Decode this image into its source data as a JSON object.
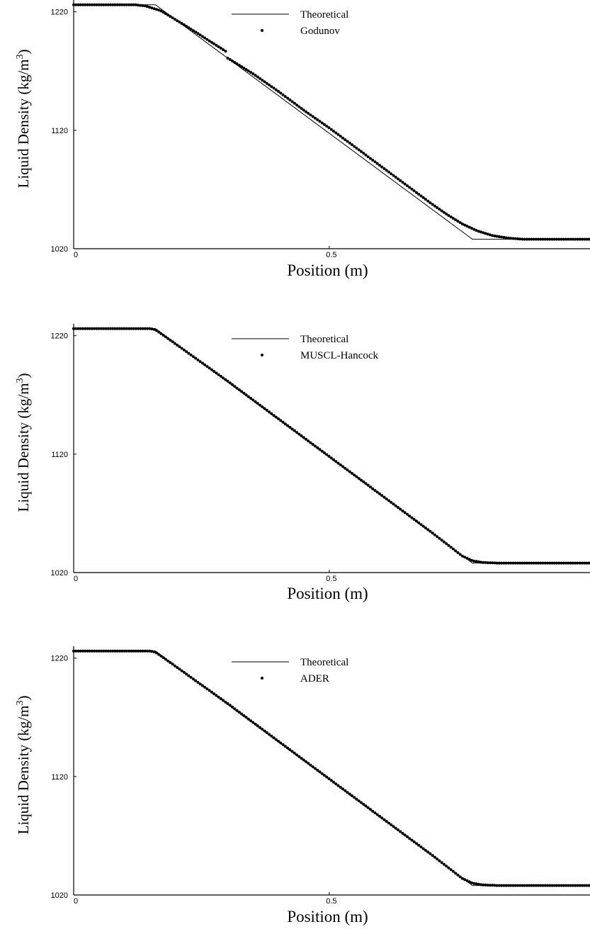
{
  "chart_data": [
    {
      "type": "line",
      "xlabel": "Position (m)",
      "ylabel_main": "Liquid Density (kg/m",
      "ylabel_sup": "3",
      "ylabel_close": ")",
      "xlim": [
        0,
        1.01
      ],
      "ylim": [
        1020,
        1230
      ],
      "xticks": [
        {
          "v": 0,
          "label": "0"
        },
        {
          "v": 0.5,
          "label": "0.5"
        }
      ],
      "yticks": [
        {
          "v": 1020,
          "label": "1020"
        },
        {
          "v": 1120,
          "label": "1120"
        },
        {
          "v": 1220,
          "label": "1220"
        }
      ],
      "series": [
        {
          "name": "Theoretical",
          "style": "line",
          "x": [
            0,
            0.16,
            0.78,
            1.01
          ],
          "y": [
            1226,
            1226,
            1028,
            1028
          ]
        },
        {
          "name": "Godunov",
          "style": "dots",
          "dx": 0.0045,
          "x": [
            0,
            0.12,
            0.14,
            0.17,
            0.22,
            0.3,
            0.301,
            0.35,
            0.4,
            0.45,
            0.5,
            0.55,
            0.6,
            0.65,
            0.7,
            0.73,
            0.76,
            0.79,
            0.82,
            0.85,
            0.88,
            1.01
          ],
          "y": [
            1226,
            1226,
            1225,
            1221,
            1208,
            1186,
            1181,
            1168,
            1153,
            1137,
            1122,
            1106,
            1090,
            1074,
            1058,
            1049,
            1041,
            1035,
            1031,
            1029,
            1028,
            1028
          ]
        }
      ]
    },
    {
      "type": "line",
      "xlabel": "Position (m)",
      "ylabel_main": "Liquid Density (kg/m",
      "ylabel_sup": "3",
      "ylabel_close": ")",
      "xlim": [
        0,
        1.01
      ],
      "ylim": [
        1020,
        1230
      ],
      "xticks": [
        {
          "v": 0,
          "label": "0"
        },
        {
          "v": 0.5,
          "label": "0.5"
        }
      ],
      "yticks": [
        {
          "v": 1020,
          "label": "1020"
        },
        {
          "v": 1120,
          "label": "1120"
        },
        {
          "v": 1220,
          "label": "1220"
        }
      ],
      "series": [
        {
          "name": "Theoretical",
          "style": "line",
          "x": [
            0,
            0.16,
            0.78,
            1.01
          ],
          "y": [
            1226,
            1226,
            1028,
            1028
          ]
        },
        {
          "name": "MUSCL-Hancock",
          "style": "dots",
          "dx": 0.0045,
          "x": [
            0,
            0.15,
            0.16,
            0.18,
            0.3,
            0.4,
            0.5,
            0.6,
            0.7,
            0.76,
            0.78,
            0.8,
            0.83,
            1.01
          ],
          "y": [
            1226,
            1226,
            1225,
            1219,
            1182,
            1150,
            1118,
            1086,
            1054,
            1034,
            1030,
            1028.5,
            1028,
            1028
          ]
        }
      ]
    },
    {
      "type": "line",
      "xlabel": "Position (m)",
      "ylabel_main": "Liquid Density (kg/m",
      "ylabel_sup": "3",
      "ylabel_close": ")",
      "xlim": [
        0,
        1.01
      ],
      "ylim": [
        1020,
        1230
      ],
      "xticks": [
        {
          "v": 0,
          "label": "0"
        },
        {
          "v": 0.5,
          "label": "0.5"
        }
      ],
      "yticks": [
        {
          "v": 1020,
          "label": "1020"
        },
        {
          "v": 1120,
          "label": "1120"
        },
        {
          "v": 1220,
          "label": "1220"
        }
      ],
      "series": [
        {
          "name": "Theoretical",
          "style": "line",
          "x": [
            0,
            0.16,
            0.78,
            1.01
          ],
          "y": [
            1226,
            1226,
            1028,
            1028
          ]
        },
        {
          "name": "ADER",
          "style": "dots",
          "dx": 0.0045,
          "x": [
            0,
            0.15,
            0.16,
            0.18,
            0.3,
            0.4,
            0.5,
            0.6,
            0.7,
            0.76,
            0.78,
            0.8,
            0.83,
            1.01
          ],
          "y": [
            1226,
            1226,
            1225,
            1219,
            1182,
            1150,
            1118,
            1086,
            1054,
            1034,
            1030,
            1028.5,
            1028,
            1028
          ]
        }
      ]
    }
  ]
}
